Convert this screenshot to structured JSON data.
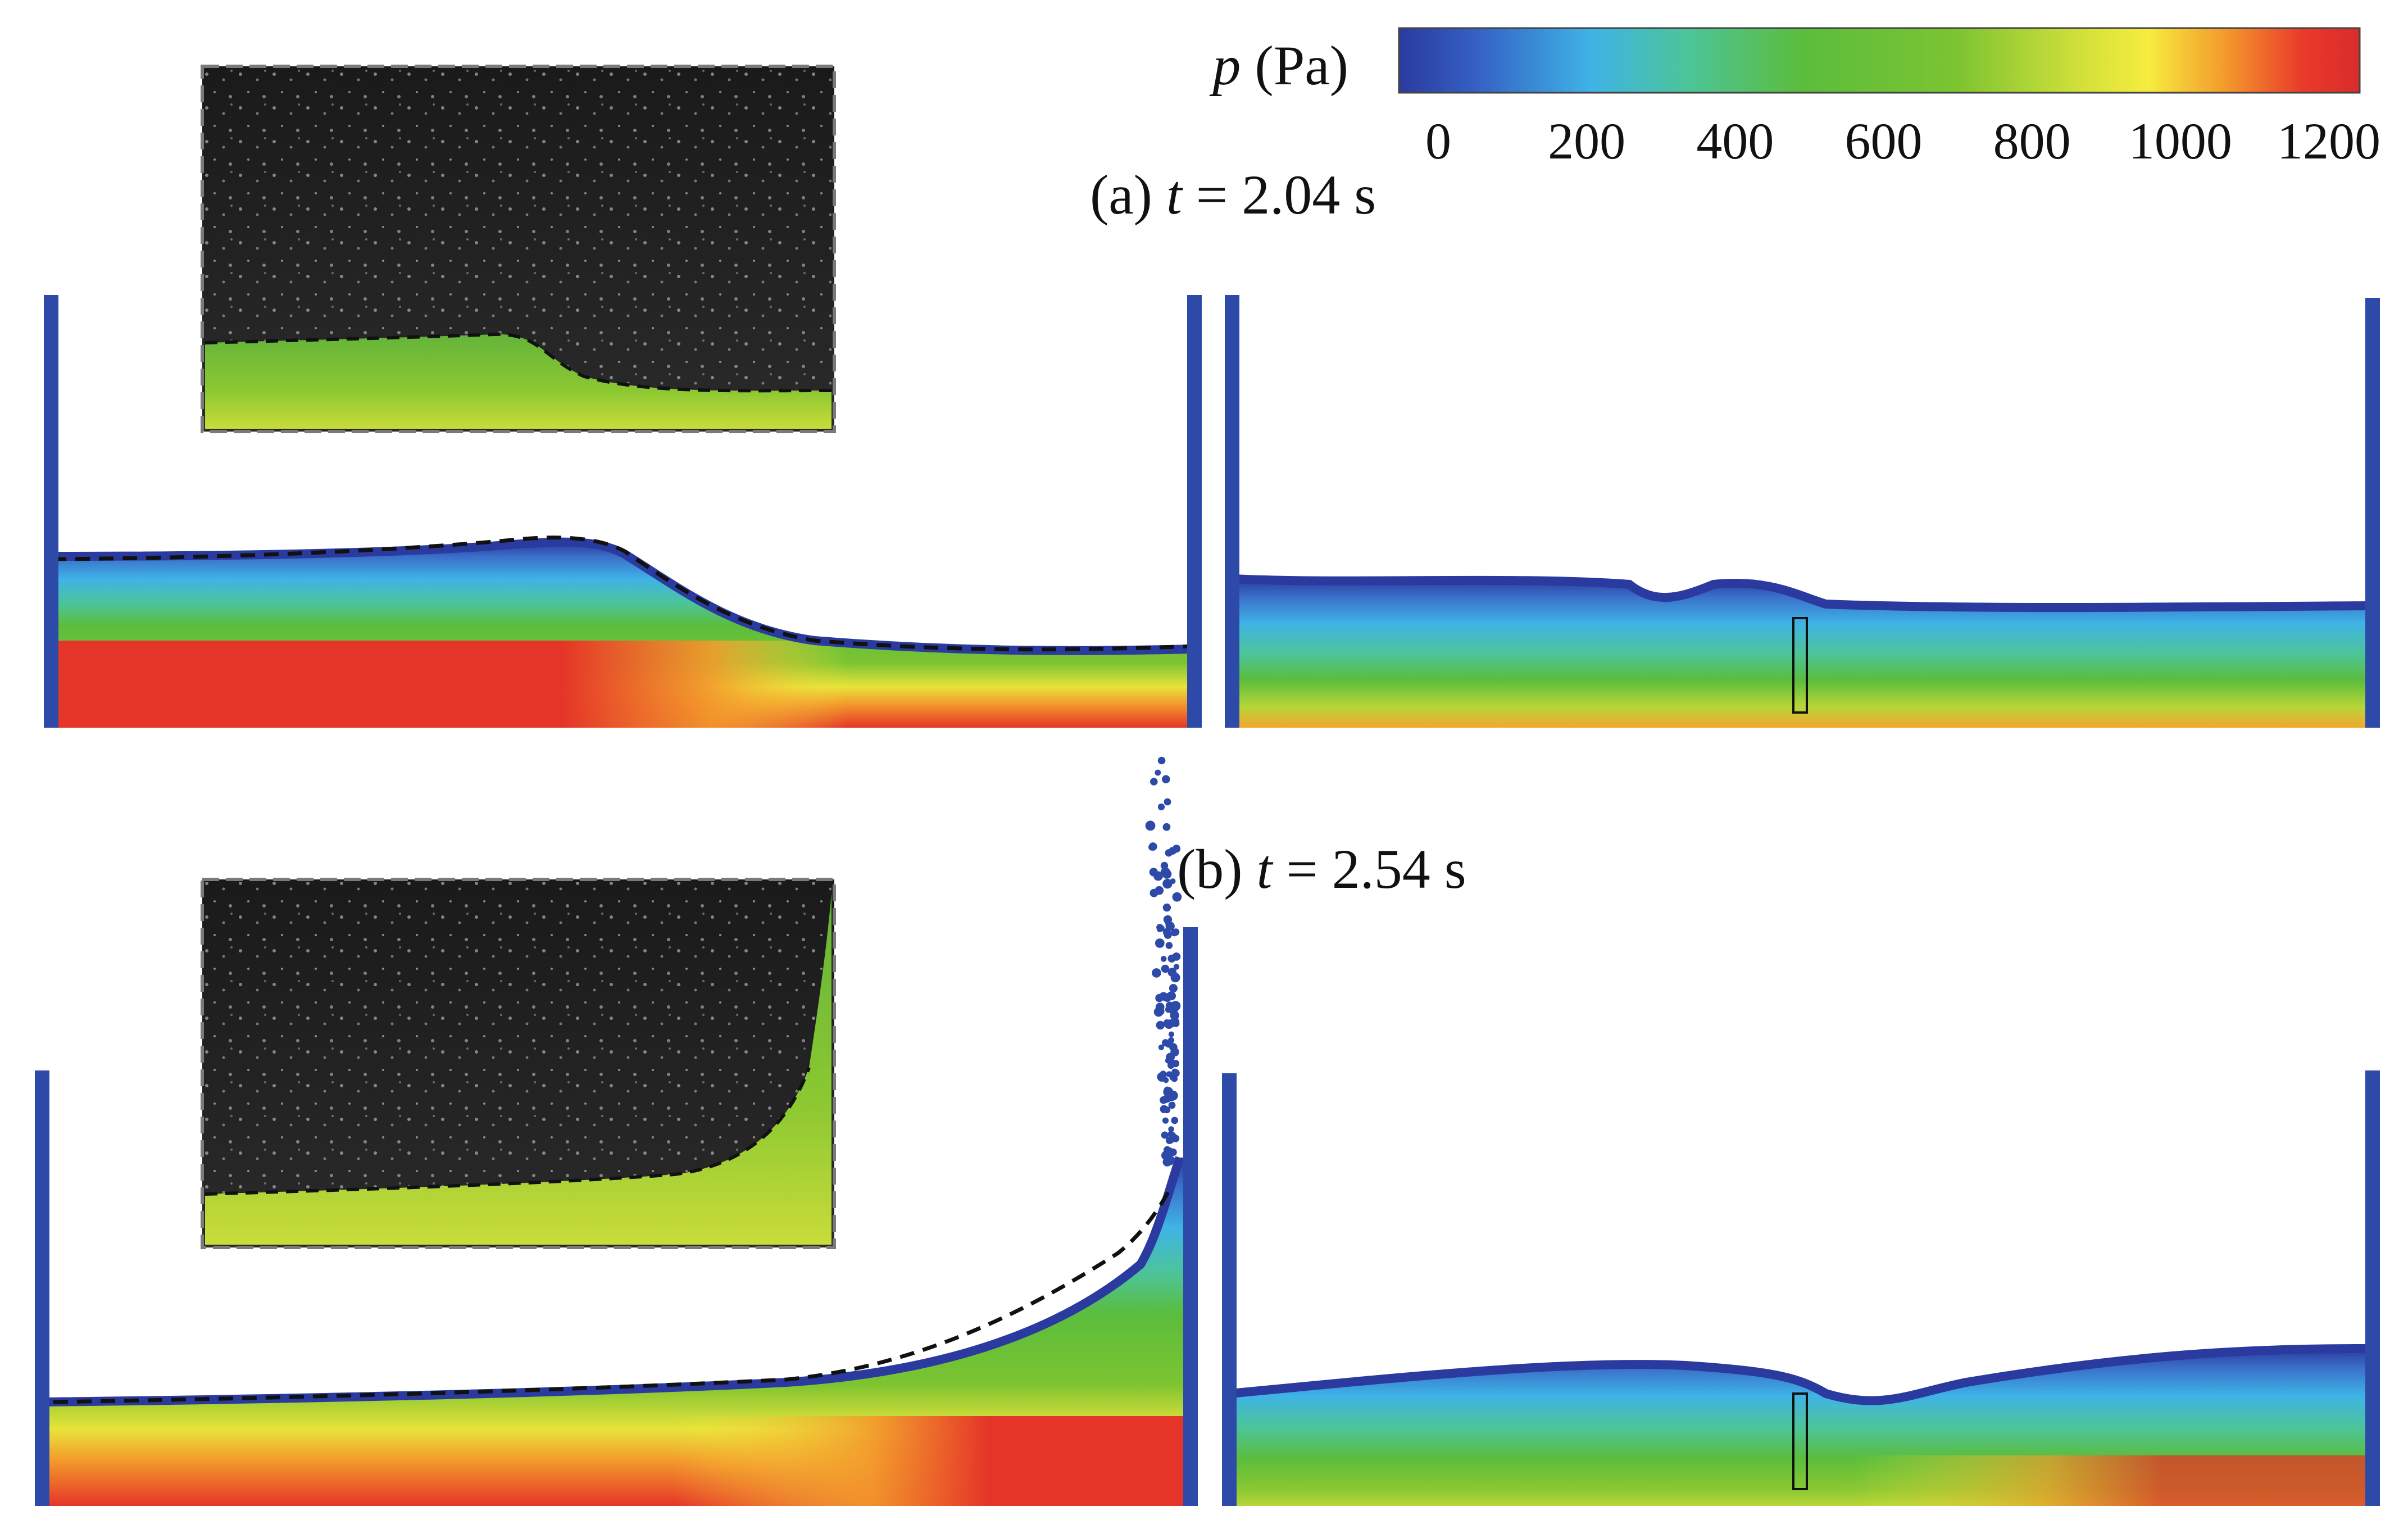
{
  "colorbar": {
    "symbol": "p",
    "unit": " (Pa)",
    "ticks": [
      "0",
      "200",
      "400",
      "600",
      "800",
      "1000",
      "1200"
    ],
    "range": [
      0,
      1200
    ],
    "stops": [
      "#2b3a9e",
      "#3560c4",
      "#3fb3e6",
      "#4cc49a",
      "#5bbd3c",
      "#7cc431",
      "#d8e23a",
      "#f7ec3e",
      "#f39a2c",
      "#ea3a2a",
      "#d92b2b"
    ]
  },
  "panels": [
    {
      "prefix": "(a) ",
      "t": "t",
      "eq": " = 2.04 s"
    },
    {
      "prefix": "(b) ",
      "t": "t",
      "eq": " = 2.54 s"
    }
  ],
  "colors": {
    "wall": "#2e4aa8",
    "free_surface": "#2b3a9e",
    "photo_frame": "#1a1a1a",
    "dashed_profile": "#111111"
  }
}
